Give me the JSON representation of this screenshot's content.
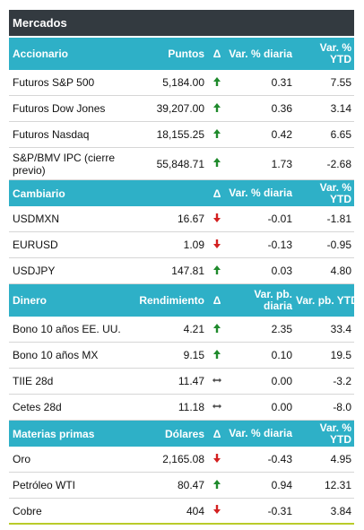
{
  "title": "Mercados",
  "colors": {
    "header_bg": "#2eb0c7",
    "title_bg": "#333a40",
    "up": "#1f8a2c",
    "down": "#d32020",
    "bottom_rule": "#b9cc2a"
  },
  "sections": {
    "accionario": {
      "headers": [
        "Accionario",
        "Puntos",
        "Δ",
        "Var. % diaria",
        "Var. % YTD"
      ],
      "rows": [
        {
          "name": "Futuros S&P 500",
          "value": "5,184.00",
          "dir": "up",
          "daily": "0.31",
          "ytd": "7.55"
        },
        {
          "name": "Futuros Dow Jones",
          "value": "39,207.00",
          "dir": "up",
          "daily": "0.36",
          "ytd": "3.14"
        },
        {
          "name": "Futuros Nasdaq",
          "value": "18,155.25",
          "dir": "up",
          "daily": "0.42",
          "ytd": "6.65"
        },
        {
          "name": "S&P/BMV IPC (cierre previo)",
          "value": "55,848.71",
          "dir": "up",
          "daily": "1.73",
          "ytd": "-2.68"
        }
      ]
    },
    "cambiario": {
      "headers": [
        "Cambiario",
        "",
        "Δ",
        "Var. % diaria",
        "Var. % YTD"
      ],
      "rows": [
        {
          "name": "USDMXN",
          "value": "16.67",
          "dir": "down",
          "daily": "-0.01",
          "ytd": "-1.81"
        },
        {
          "name": "EURUSD",
          "value": "1.09",
          "dir": "down",
          "daily": "-0.13",
          "ytd": "-0.95"
        },
        {
          "name": "USDJPY",
          "value": "147.81",
          "dir": "up",
          "daily": "0.03",
          "ytd": "4.80"
        }
      ]
    },
    "dinero": {
      "headers": [
        "Dinero",
        "Rendimiento",
        "Δ",
        "Var. pb. diaria",
        "Var. pb. YTD"
      ],
      "rows": [
        {
          "name": "Bono 10 años EE. UU.",
          "value": "4.21",
          "dir": "up",
          "daily": "2.35",
          "ytd": "33.4"
        },
        {
          "name": "Bono 10 años MX",
          "value": "9.15",
          "dir": "up",
          "daily": "0.10",
          "ytd": "19.5"
        },
        {
          "name": "TIIE 28d",
          "value": "11.47",
          "dir": "flat",
          "daily": "0.00",
          "ytd": "-3.2"
        },
        {
          "name": "Cetes 28d",
          "value": "11.18",
          "dir": "flat",
          "daily": "0.00",
          "ytd": "-8.0"
        }
      ]
    },
    "materias": {
      "headers": [
        "Materias primas",
        "Dólares",
        "Δ",
        "Var. % diaria",
        "Var. % YTD"
      ],
      "rows": [
        {
          "name": "Oro",
          "value": "2,165.08",
          "dir": "down",
          "daily": "-0.43",
          "ytd": "4.95"
        },
        {
          "name": "Petróleo WTI",
          "value": "80.47",
          "dir": "up",
          "daily": "0.94",
          "ytd": "12.31"
        },
        {
          "name": "Cobre",
          "value": "404",
          "dir": "down",
          "daily": "-0.31",
          "ytd": "3.84"
        }
      ]
    }
  }
}
